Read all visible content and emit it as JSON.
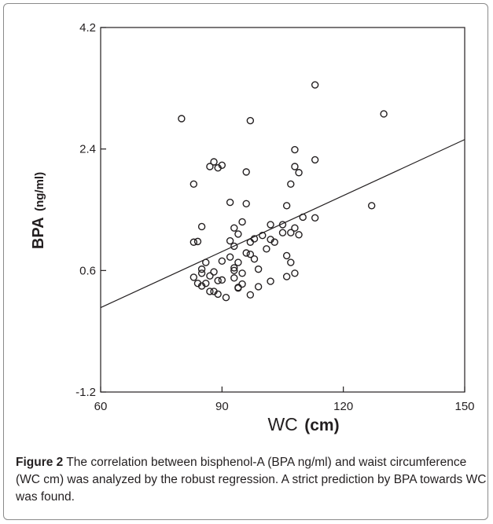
{
  "caption": {
    "label": "Figure 2",
    "text": " The correlation between bisphenol-A (BPA ng/ml) and waist circumference (WC cm) was analyzed by the robust regression. A strict prediction by BPA towards WC was found."
  },
  "chart_data": {
    "type": "scatter",
    "title": "",
    "xlabel": "WC (cm)",
    "xlabel_main": "WC",
    "xlabel_unit": "(cm)",
    "ylabel": "BPA (ng/ml)",
    "ylabel_main": "BPA",
    "ylabel_unit": "(ng/ml)",
    "xlim": [
      60,
      150
    ],
    "ylim": [
      -1.2,
      4.2
    ],
    "xticks": [
      60,
      90,
      120,
      150
    ],
    "yticks": [
      -1.2,
      0.6,
      2.4,
      4.2
    ],
    "xtick_labels": [
      "60",
      "90",
      "120",
      "150"
    ],
    "ytick_labels": [
      "-1.2",
      "0.6",
      "2.4",
      "4.2"
    ],
    "grid": false,
    "legend": "none",
    "marker_color": "#231f20",
    "points": [
      {
        "x": 80,
        "y": 2.85
      },
      {
        "x": 97,
        "y": 2.82
      },
      {
        "x": 113,
        "y": 3.35
      },
      {
        "x": 130,
        "y": 2.92
      },
      {
        "x": 108,
        "y": 2.39
      },
      {
        "x": 113,
        "y": 2.24
      },
      {
        "x": 88,
        "y": 2.21
      },
      {
        "x": 90,
        "y": 2.16
      },
      {
        "x": 87,
        "y": 2.14
      },
      {
        "x": 89,
        "y": 2.12
      },
      {
        "x": 108,
        "y": 2.14
      },
      {
        "x": 96,
        "y": 2.06
      },
      {
        "x": 109,
        "y": 2.05
      },
      {
        "x": 83,
        "y": 1.88
      },
      {
        "x": 107,
        "y": 1.88
      },
      {
        "x": 92,
        "y": 1.61
      },
      {
        "x": 96,
        "y": 1.59
      },
      {
        "x": 106,
        "y": 1.56
      },
      {
        "x": 127,
        "y": 1.56
      },
      {
        "x": 110,
        "y": 1.39
      },
      {
        "x": 113,
        "y": 1.38
      },
      {
        "x": 95,
        "y": 1.32
      },
      {
        "x": 102,
        "y": 1.28
      },
      {
        "x": 105,
        "y": 1.28
      },
      {
        "x": 85,
        "y": 1.25
      },
      {
        "x": 93,
        "y": 1.23
      },
      {
        "x": 108,
        "y": 1.23
      },
      {
        "x": 94,
        "y": 1.14
      },
      {
        "x": 107,
        "y": 1.16
      },
      {
        "x": 100,
        "y": 1.12
      },
      {
        "x": 105,
        "y": 1.16
      },
      {
        "x": 109,
        "y": 1.13
      },
      {
        "x": 98,
        "y": 1.07
      },
      {
        "x": 102,
        "y": 1.06
      },
      {
        "x": 103,
        "y": 1.02
      },
      {
        "x": 83,
        "y": 1.02
      },
      {
        "x": 84,
        "y": 1.03
      },
      {
        "x": 92,
        "y": 1.04
      },
      {
        "x": 97,
        "y": 1.02
      },
      {
        "x": 93,
        "y": 0.96
      },
      {
        "x": 101,
        "y": 0.92
      },
      {
        "x": 96,
        "y": 0.86
      },
      {
        "x": 97,
        "y": 0.84
      },
      {
        "x": 106,
        "y": 0.82
      },
      {
        "x": 92,
        "y": 0.8
      },
      {
        "x": 98,
        "y": 0.77
      },
      {
        "x": 90,
        "y": 0.74
      },
      {
        "x": 86,
        "y": 0.72
      },
      {
        "x": 94,
        "y": 0.72
      },
      {
        "x": 107,
        "y": 0.72
      },
      {
        "x": 93,
        "y": 0.64
      },
      {
        "x": 85,
        "y": 0.62
      },
      {
        "x": 99,
        "y": 0.62
      },
      {
        "x": 93,
        "y": 0.6
      },
      {
        "x": 88,
        "y": 0.58
      },
      {
        "x": 85,
        "y": 0.56
      },
      {
        "x": 95,
        "y": 0.56
      },
      {
        "x": 108,
        "y": 0.56
      },
      {
        "x": 83,
        "y": 0.5
      },
      {
        "x": 87,
        "y": 0.52
      },
      {
        "x": 106,
        "y": 0.51
      },
      {
        "x": 93,
        "y": 0.49
      },
      {
        "x": 89,
        "y": 0.45
      },
      {
        "x": 90,
        "y": 0.46
      },
      {
        "x": 102,
        "y": 0.44
      },
      {
        "x": 84,
        "y": 0.41
      },
      {
        "x": 86,
        "y": 0.41
      },
      {
        "x": 85,
        "y": 0.37
      },
      {
        "x": 95,
        "y": 0.4
      },
      {
        "x": 94,
        "y": 0.35
      },
      {
        "x": 99,
        "y": 0.36
      },
      {
        "x": 94,
        "y": 0.34
      },
      {
        "x": 87,
        "y": 0.29
      },
      {
        "x": 88,
        "y": 0.29
      },
      {
        "x": 89,
        "y": 0.25
      },
      {
        "x": 97,
        "y": 0.24
      },
      {
        "x": 91,
        "y": 0.2
      }
    ],
    "regression_line": {
      "x": [
        60,
        150
      ],
      "y": [
        0.05,
        2.54
      ]
    }
  }
}
